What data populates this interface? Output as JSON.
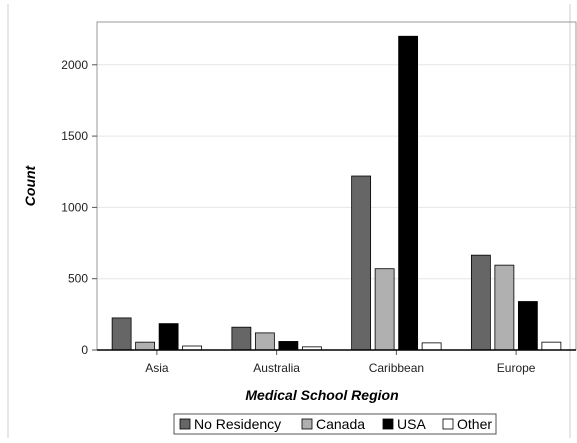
{
  "chart_data": {
    "type": "bar",
    "xlabel": "Medical School Region",
    "ylabel": "Count",
    "categories": [
      "Asia",
      "Australia",
      "Caribbean",
      "Europe"
    ],
    "series": [
      {
        "name": "No Residency",
        "values": [
          225,
          160,
          1220,
          665
        ],
        "color": "#666666"
      },
      {
        "name": "Canada",
        "values": [
          55,
          120,
          570,
          595
        ],
        "color": "#b0b0b0"
      },
      {
        "name": "USA",
        "values": [
          185,
          60,
          2200,
          340
        ],
        "color": "#000000"
      },
      {
        "name": "Other",
        "values": [
          28,
          22,
          50,
          55
        ],
        "color": "#ffffff"
      }
    ],
    "yticks": [
      0,
      500,
      1000,
      1500,
      2000
    ],
    "ylim": [
      0,
      2300
    ],
    "grid": true,
    "legend_position": "bottom"
  }
}
